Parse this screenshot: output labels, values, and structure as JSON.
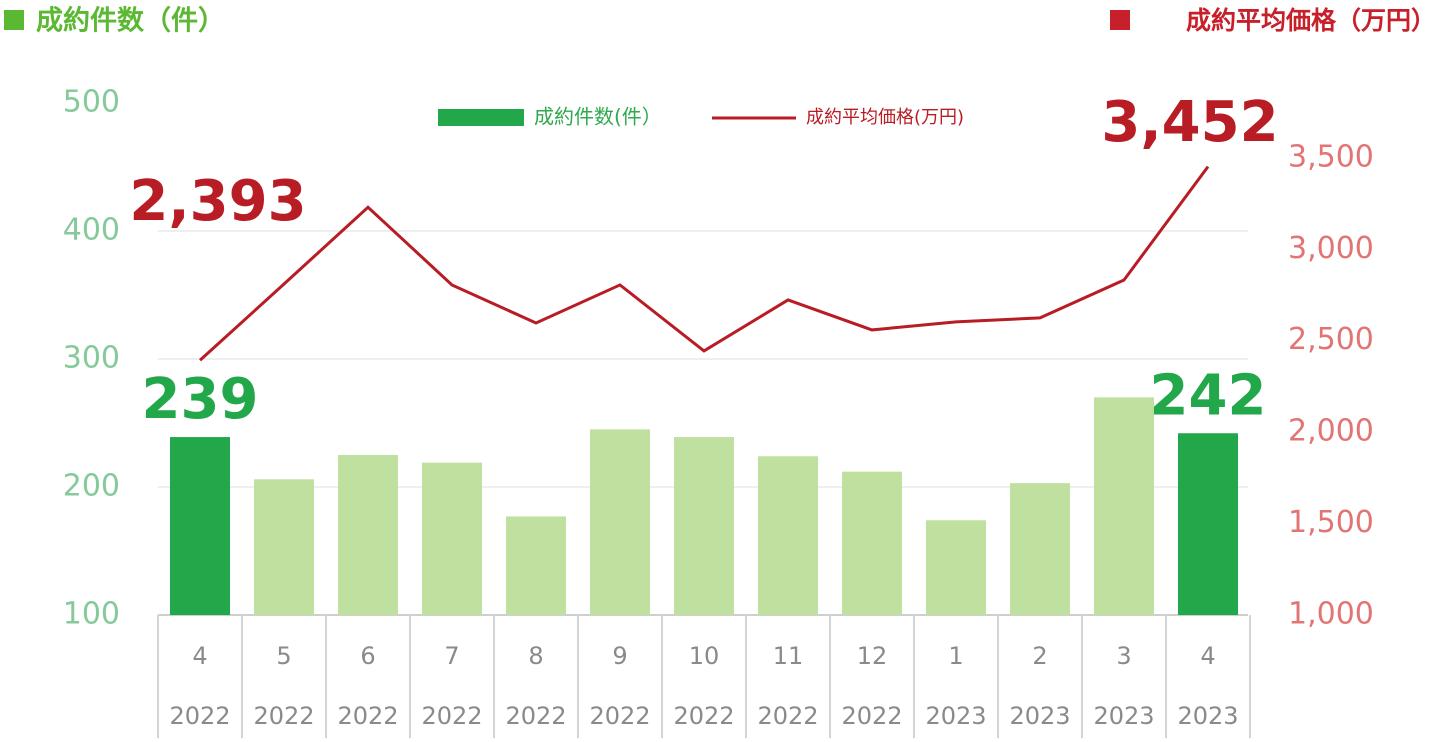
{
  "chart_data": {
    "type": "bar-line",
    "y_label": "成約件数（件）",
    "y2_label": "成約平均価格（万円）",
    "categories": [
      "4",
      "5",
      "6",
      "7",
      "8",
      "9",
      "10",
      "11",
      "12",
      "1",
      "2",
      "3",
      "4"
    ],
    "category_groups": [
      "2022",
      "2022",
      "2022",
      "2022",
      "2022",
      "2022",
      "2022",
      "2022",
      "2022",
      "2023",
      "2023",
      "2023",
      "2023"
    ],
    "series": [
      {
        "name": "成約件数(件）",
        "type": "bar",
        "color": "#bfe09e",
        "colors": [
          "#22a84a",
          "#bfe09e",
          "#bfe09e",
          "#bfe09e",
          "#bfe09e",
          "#bfe09e",
          "#bfe09e",
          "#bfe09e",
          "#bfe09e",
          "#bfe09e",
          "#bfe09e",
          "#bfe09e",
          "#22a84a"
        ],
        "values": [
          239,
          206,
          225,
          219,
          177,
          245,
          239,
          224,
          212,
          174,
          203,
          270,
          242
        ],
        "value_labels": [
          "239",
          null,
          null,
          null,
          null,
          null,
          null,
          null,
          null,
          null,
          null,
          null,
          "242"
        ]
      },
      {
        "name": "成約平均価格(万円)",
        "type": "line",
        "axis": "y2",
        "color": "#b81c24",
        "values": [
          2393,
          2810,
          3230,
          2805,
          2597,
          2805,
          2444,
          2723,
          2559,
          2603,
          2625,
          2832,
          3452
        ],
        "value_labels": [
          "2,393",
          null,
          null,
          null,
          null,
          null,
          null,
          null,
          null,
          null,
          null,
          null,
          "3,452"
        ]
      }
    ],
    "ylim": [
      100,
      500
    ],
    "yticks": [
      100,
      200,
      300,
      400,
      500
    ],
    "y2lim": [
      1000,
      3800
    ],
    "y2ticks": [
      {
        "value": 1000,
        "label": "1,000"
      },
      {
        "value": 1500,
        "label": "1,500"
      },
      {
        "value": 2000,
        "label": "2,000"
      },
      {
        "value": 2500,
        "label": "2,500"
      },
      {
        "value": 3000,
        "label": "3,000"
      },
      {
        "value": 3500,
        "label": "3,500"
      }
    ],
    "grid": true
  }
}
